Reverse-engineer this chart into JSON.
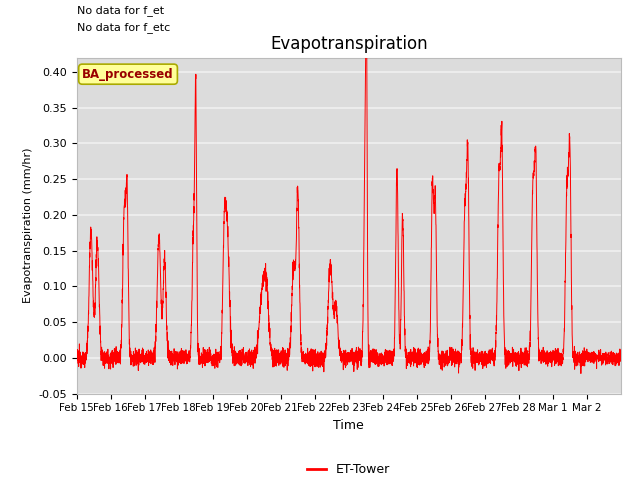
{
  "title": "Evapotranspiration",
  "ylabel": "Evapotranspiration (mm/hr)",
  "xlabel": "Time",
  "ylim": [
    -0.05,
    0.42
  ],
  "yticks": [
    -0.05,
    0.0,
    0.05,
    0.1,
    0.15,
    0.2,
    0.25,
    0.3,
    0.35,
    0.4
  ],
  "text_top_left_line1": "No data for f_et",
  "text_top_left_line2": "No data for f_etc",
  "legend_box_label": "BA_processed",
  "legend_line_label": "ET-Tower",
  "line_color": "#ff0000",
  "background_color": "#ffffff",
  "plot_bg_color": "#dcdcdc",
  "grid_color": "#f0f0f0",
  "legend_box_facecolor": "#ffff99",
  "legend_box_edgecolor": "#aaaa00",
  "xlim_start": 0,
  "xlim_end": 16.0,
  "xtick_labels": [
    "Feb 15",
    "Feb 16",
    "Feb 17",
    "Feb 18",
    "Feb 19",
    "Feb 20",
    "Feb 21",
    "Feb 22",
    "Feb 23",
    "Feb 24",
    "Feb 25",
    "Feb 26",
    "Feb 27",
    "Feb 28",
    "Mar 1",
    "Mar 2"
  ],
  "xtick_positions": [
    0,
    1,
    2,
    3,
    4,
    5,
    6,
    7,
    8,
    9,
    10,
    11,
    12,
    13,
    14,
    15
  ]
}
